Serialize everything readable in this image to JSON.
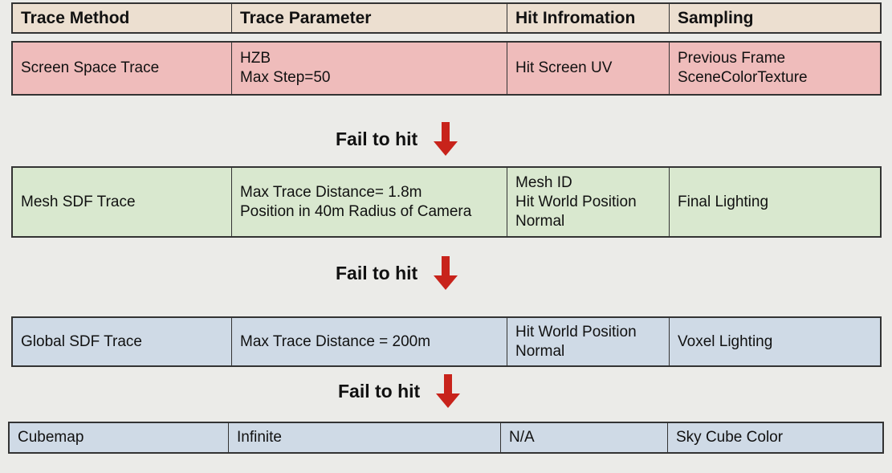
{
  "colors": {
    "header": "#ecdfd0",
    "screen": "#efbcbb",
    "mesh": "#d9e8cf",
    "global": "#cfdae6",
    "cubemap": "#cfdae6",
    "arrow": "#c8231b"
  },
  "header": [
    "Trace Method",
    "Trace Parameter",
    "Hit Infromation",
    "Sampling"
  ],
  "rows": [
    {
      "cells": [
        [
          "Screen Space Trace"
        ],
        [
          "HZB",
          "Max Step=50"
        ],
        [
          "Hit Screen UV"
        ],
        [
          "Previous Frame",
          "SceneColorTexture"
        ]
      ]
    },
    {
      "cells": [
        [
          "Mesh SDF Trace"
        ],
        [
          "Max Trace Distance= 1.8m",
          "Position in 40m Radius of Camera"
        ],
        [
          "Mesh ID",
          "Hit World Position",
          "Normal"
        ],
        [
          "Final Lighting"
        ]
      ]
    },
    {
      "cells": [
        [
          "Global SDF Trace"
        ],
        [
          "Max Trace Distance = 200m"
        ],
        [
          "Hit World Position",
          "Normal"
        ],
        [
          "Voxel Lighting"
        ]
      ]
    },
    {
      "cells": [
        [
          "Cubemap"
        ],
        [
          "Infinite"
        ],
        [
          "N/A"
        ],
        [
          "Sky Cube Color"
        ]
      ]
    }
  ],
  "fail_label": "Fail to hit"
}
